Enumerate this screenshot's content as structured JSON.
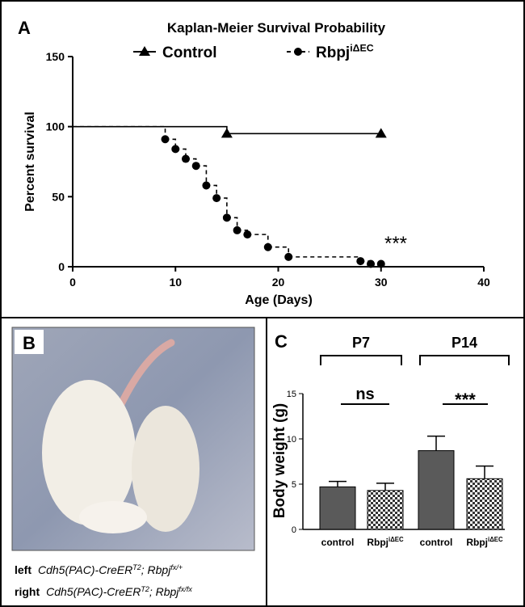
{
  "chart_data": [
    {
      "type": "step",
      "panel_label": "A",
      "title": "Kaplan-Meier Survival Probability",
      "xlabel": "Age (Days)",
      "ylabel": "Percent survival",
      "xlim": [
        0,
        40
      ],
      "xticks": [
        0,
        10,
        20,
        30,
        40
      ],
      "ylim": [
        0,
        150
      ],
      "yticks": [
        0,
        50,
        100,
        150
      ],
      "series": [
        {
          "name": "Control",
          "color": "#000000",
          "marker": "triangle",
          "dashed": false,
          "x": [
            0,
            15,
            30
          ],
          "values": [
            100,
            95,
            95
          ]
        },
        {
          "name": "Rbpj",
          "name_superscript": "iΔEC",
          "color": "#000000",
          "marker": "circle",
          "dashed": true,
          "x": [
            0,
            9,
            10,
            11,
            12,
            13,
            14,
            15,
            16,
            17,
            19,
            21,
            28,
            29,
            30
          ],
          "values": [
            100,
            91,
            84,
            77,
            72,
            58,
            49,
            35,
            26,
            23,
            14,
            7,
            4,
            2,
            2
          ]
        }
      ],
      "annotations": [
        "***"
      ]
    },
    {
      "type": "bar",
      "panel_label": "C",
      "ylabel": "Body weight (g)",
      "group_labels": [
        "P7",
        "P14"
      ],
      "categories": [
        "control",
        "Rbpj",
        "control",
        "Rbpj"
      ],
      "category_superscripts": [
        null,
        "iΔEC",
        null,
        "iΔEC"
      ],
      "values": [
        4.7,
        4.3,
        8.7,
        5.6
      ],
      "errors": [
        0.6,
        0.8,
        1.6,
        1.4
      ],
      "patterns": [
        "solid",
        "checkered",
        "solid",
        "checkered"
      ],
      "color": "#5a5a5a",
      "ylim": [
        0,
        15
      ],
      "yticks": [
        0,
        5,
        10,
        15
      ],
      "annotations": [
        "ns",
        "***"
      ]
    }
  ],
  "photo": {
    "panel_label": "B",
    "captions": [
      [
        "left",
        "Cdh5(PAC)-CreER",
        "T2",
        "; Rbpj",
        "fx/+"
      ],
      [
        "right",
        "Cdh5(PAC)-CreER",
        "T2",
        "; Rbpj",
        "fx/fx"
      ]
    ]
  }
}
